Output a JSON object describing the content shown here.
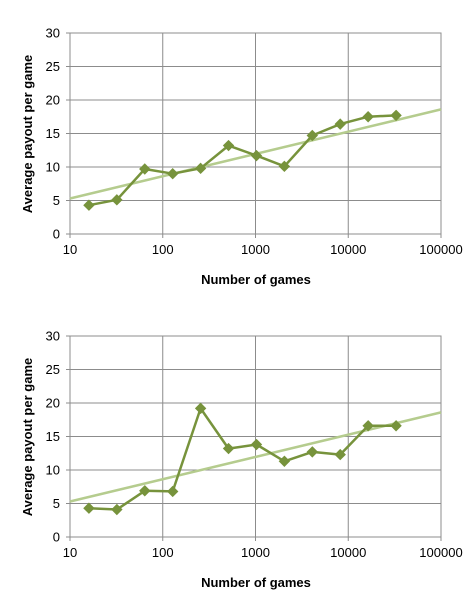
{
  "chart_data": [
    {
      "type": "line",
      "xscale": "log",
      "xlim": [
        10,
        100000
      ],
      "ylim": [
        0,
        30
      ],
      "grid": true,
      "xlabel": "Number of games",
      "ylabel": "Average payout per game",
      "xticks": [
        "10",
        "100",
        "1000",
        "10000",
        "100000"
      ],
      "yticks": [
        "0",
        "5",
        "10",
        "15",
        "20",
        "25",
        "30"
      ],
      "series": [
        {
          "color": "#77933c",
          "marker": "diamond",
          "x": [
            16,
            32,
            64,
            128,
            256,
            512,
            1024,
            2048,
            4096,
            8192,
            16384,
            32768
          ],
          "y": [
            4.3,
            5.1,
            9.7,
            9.0,
            9.8,
            13.2,
            11.7,
            10.1,
            14.7,
            16.4,
            17.5,
            17.7
          ]
        },
        {
          "color": "#b5cc8e",
          "style": "trendline",
          "x": [
            10,
            100000
          ],
          "y": [
            5.3,
            18.6
          ]
        }
      ]
    },
    {
      "type": "line",
      "xscale": "log",
      "xlim": [
        10,
        100000
      ],
      "ylim": [
        0,
        30
      ],
      "grid": true,
      "xlabel": "Number of games",
      "ylabel": "Average payout per game",
      "xticks": [
        "10",
        "100",
        "1000",
        "10000",
        "100000"
      ],
      "yticks": [
        "0",
        "5",
        "10",
        "15",
        "20",
        "25",
        "30"
      ],
      "series": [
        {
          "color": "#77933c",
          "marker": "diamond",
          "x": [
            16,
            32,
            64,
            128,
            256,
            512,
            1024,
            2048,
            4096,
            8192,
            16384,
            32768
          ],
          "y": [
            4.3,
            4.1,
            6.9,
            6.8,
            19.2,
            13.2,
            13.8,
            11.3,
            12.7,
            12.3,
            16.6,
            16.6
          ]
        },
        {
          "color": "#b5cc8e",
          "style": "trendline",
          "x": [
            10,
            100000
          ],
          "y": [
            5.3,
            18.6
          ]
        }
      ]
    }
  ]
}
